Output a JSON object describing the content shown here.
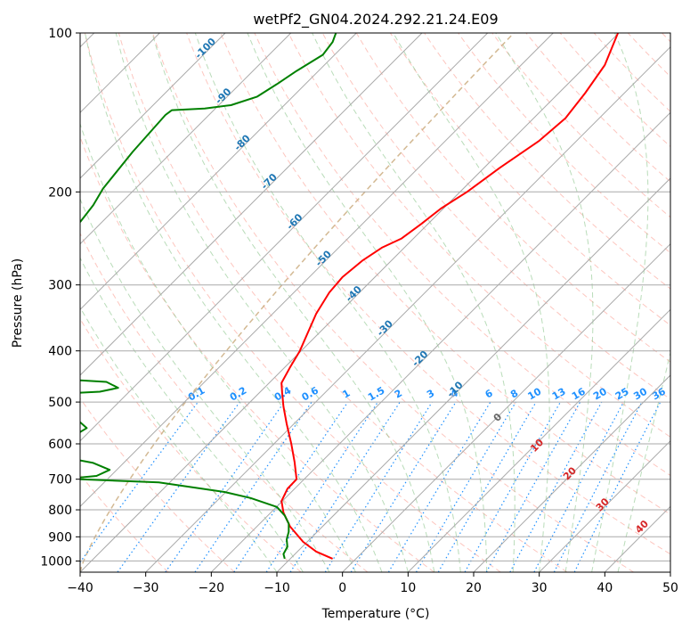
{
  "chart_data": {
    "type": "line",
    "title": "wetPf2_GN04.2024.292.21.24.E09",
    "xlabel": "Temperature (°C)",
    "ylabel": "Pressure (hPa)",
    "xlim": [
      -40,
      50
    ],
    "ylim": [
      1050,
      100
    ],
    "y_scale": "log",
    "x_ticks": [
      -40,
      -30,
      -20,
      -10,
      0,
      10,
      20,
      30,
      40,
      50
    ],
    "y_ticks": [
      100,
      200,
      300,
      400,
      500,
      600,
      700,
      800,
      900,
      1000
    ],
    "grid": "horizontal at pressure ticks",
    "series": [
      {
        "color": "#ff0000",
        "points": [
          [
            -1.5,
            990
          ],
          [
            -4,
            960
          ],
          [
            -6,
            920
          ],
          [
            -8,
            860
          ],
          [
            -9,
            810
          ],
          [
            -9.3,
            770
          ],
          [
            -8.4,
            730
          ],
          [
            -7,
            700
          ],
          [
            -7.3,
            650
          ],
          [
            -7.8,
            600
          ],
          [
            -8.5,
            550
          ],
          [
            -9,
            510
          ],
          [
            -9.2,
            480
          ],
          [
            -9.3,
            460
          ],
          [
            -8,
            430
          ],
          [
            -6.5,
            400
          ],
          [
            -5.3,
            370
          ],
          [
            -4,
            340
          ],
          [
            -2,
            310
          ],
          [
            0,
            290
          ],
          [
            3,
            270
          ],
          [
            6,
            255
          ],
          [
            9,
            245
          ],
          [
            12,
            230
          ],
          [
            15,
            215
          ],
          [
            19,
            200
          ],
          [
            24,
            180
          ],
          [
            30,
            160
          ],
          [
            34,
            145
          ],
          [
            37,
            130
          ],
          [
            40,
            115
          ],
          [
            42,
            100
          ]
        ]
      },
      {
        "color": "#008000",
        "points": [
          [
            -8.8,
            990
          ],
          [
            -9,
            970
          ],
          [
            -8.4,
            940
          ],
          [
            -8.5,
            910
          ],
          [
            -8.2,
            880
          ],
          [
            -8.2,
            850
          ],
          [
            -8.8,
            820
          ],
          [
            -10,
            790
          ],
          [
            -14,
            760
          ],
          [
            -18,
            740
          ],
          [
            -28,
            710
          ],
          [
            -40,
            700
          ]
        ]
      },
      {
        "color": "#008000",
        "points": [
          [
            -40,
            645
          ],
          [
            -38,
            652
          ],
          [
            -35.5,
            672
          ],
          [
            -37.5,
            690
          ],
          [
            -40,
            695
          ]
        ]
      },
      {
        "color": "#008000",
        "points": [
          [
            -40,
            546
          ],
          [
            -39,
            560
          ],
          [
            -40,
            570
          ]
        ]
      },
      {
        "color": "#008000",
        "points": [
          [
            -40,
            455
          ],
          [
            -36,
            458
          ],
          [
            -34.2,
            470
          ],
          [
            -37,
            478
          ],
          [
            -40,
            480
          ]
        ]
      },
      {
        "color": "#008000",
        "points": [
          [
            -40,
            228
          ],
          [
            -38,
            212
          ],
          [
            -36.5,
            197
          ],
          [
            -32,
            168
          ],
          [
            -27,
            143
          ],
          [
            -26,
            140
          ],
          [
            -21,
            139
          ],
          [
            -17,
            137
          ],
          [
            -13,
            132
          ],
          [
            -10,
            125
          ],
          [
            -7,
            118
          ],
          [
            -3,
            110
          ],
          [
            -1.5,
            104
          ],
          [
            -1,
            100
          ]
        ]
      }
    ],
    "isotherm_labels": [
      "-100",
      "-90",
      "-80",
      "-70",
      "-60",
      "-50",
      "-40",
      "-30",
      "-20",
      "-10"
    ],
    "mixing_ratio_labels": [
      "0.1",
      "0.2",
      "0.4",
      "0.6",
      "1",
      "1.5",
      "2",
      "3",
      "4",
      "6",
      "8",
      "10",
      "13",
      "16",
      "20",
      "25",
      "30",
      "36"
    ],
    "moist_adiabat_labels": [
      "0",
      "10",
      "20",
      "30",
      "40"
    ],
    "colors": {
      "temperature": "#ff0000",
      "dewpoint": "#008000",
      "isotherm_grid": "#a9a9a9",
      "dry_adiabat": "#fa8072",
      "moist_adiabat": "#7fbf7f",
      "mixing_ratio": "#1e90ff",
      "isotherm_label": "#1f77b4",
      "moist_label": "#d62728",
      "lcl_curve": "#c8a878"
    }
  }
}
